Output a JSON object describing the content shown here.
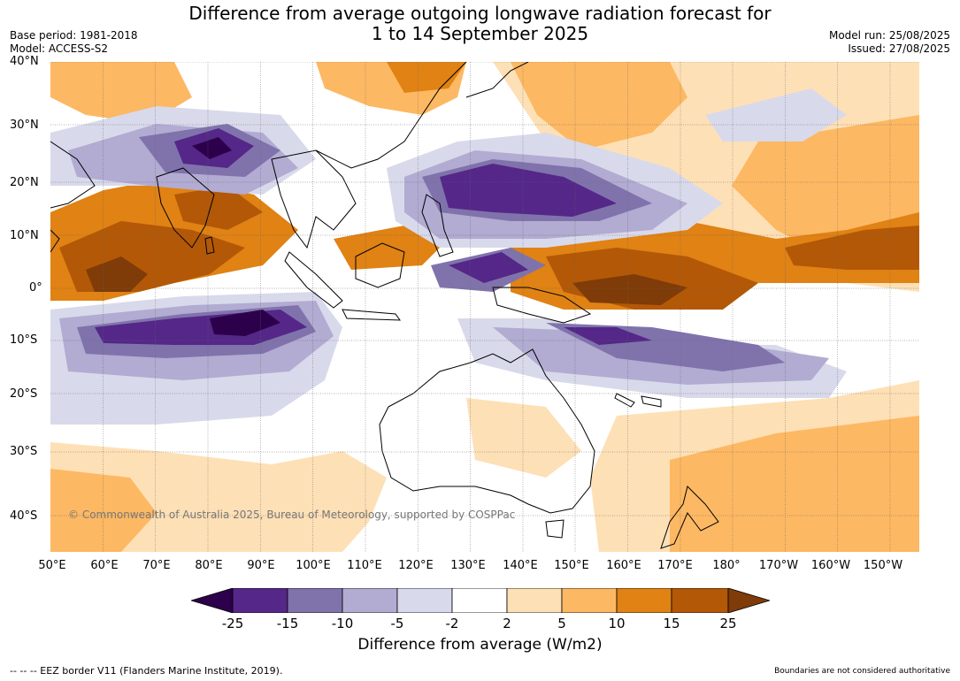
{
  "header": {
    "title_line1": "Difference from average outgoing longwave radiation forecast for",
    "title_line2": "1 to 14 September 2025",
    "base_period": "Base period: 1981-2018",
    "model": "Model: ACCESS-S2",
    "model_run": "Model run: 25/08/2025",
    "issued": "Issued: 27/08/2025"
  },
  "map": {
    "lat_labels": [
      "40°N",
      "30°N",
      "20°N",
      "10°N",
      "0°",
      "10°S",
      "20°S",
      "30°S",
      "40°S"
    ],
    "lon_labels": [
      "50°E",
      "60°E",
      "70°E",
      "80°E",
      "90°E",
      "100°E",
      "110°E",
      "120°E",
      "130°E",
      "140°E",
      "150°E",
      "160°E",
      "170°E",
      "180°",
      "170°W",
      "160°W",
      "150°W"
    ],
    "copyright": "© Commonwealth of Australia 2025, Bureau of Meteorology, supported by COSPPac",
    "colors": {
      "neg25": "#2d004b",
      "neg15": "#542788",
      "neg10": "#8073ac",
      "neg5": "#b2abd2",
      "neg2": "#d8daeb",
      "neutral": "#ffffff",
      "pos2": "#fee0b6",
      "pos5": "#fdb863",
      "pos10": "#e08214",
      "pos15": "#b35806",
      "pos25": "#7f3b08"
    }
  },
  "colorbar": {
    "tick_labels": [
      "-25",
      "-15",
      "-10",
      "-5",
      "-2",
      "2",
      "5",
      "10",
      "15",
      "25"
    ],
    "title": "Difference from average (W/m2)"
  },
  "footer": {
    "eez_note": "--  --  -- EEZ border V11 (Flanders Marine Institute, 2019).",
    "boundary_note": "Boundaries are not considered authoritative"
  }
}
